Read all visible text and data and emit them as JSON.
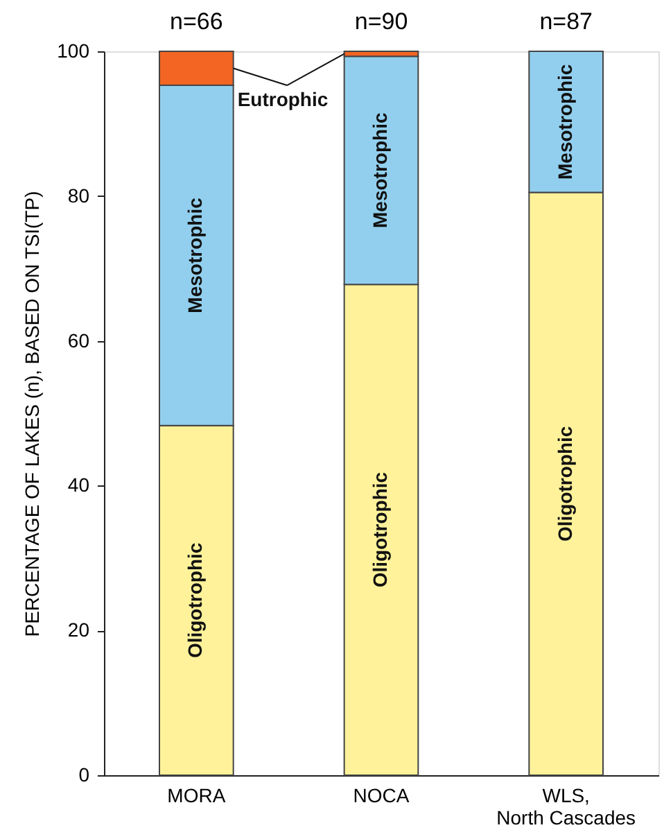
{
  "chart_data": {
    "type": "bar",
    "stacked": true,
    "ylabel": "PERCENTAGE OF LAKES (n), BASED ON TSI(TP)",
    "categories": [
      "MORA",
      "NOCA",
      "WLS, North Cascades"
    ],
    "series": [
      {
        "name": "Oligotrophic",
        "color": "#fff29a",
        "values": [
          48.3,
          67.8,
          80.5
        ]
      },
      {
        "name": "Mesotrophic",
        "color": "#92cfee",
        "values": [
          47.0,
          31.5,
          19.5
        ]
      },
      {
        "name": "Eutrophic",
        "color": "#f26522",
        "values": [
          4.7,
          0.7,
          null
        ]
      }
    ],
    "ylim": [
      0,
      100
    ],
    "yticks": [
      0,
      20,
      40,
      60,
      80,
      100
    ],
    "annotations": [
      {
        "text": "n=66",
        "x": "MORA",
        "y": 100
      },
      {
        "text": "n=90",
        "x": "NOCA",
        "y": 100
      },
      {
        "text": "n=87",
        "x": "WLS, North Cascades",
        "y": 100
      }
    ]
  }
}
